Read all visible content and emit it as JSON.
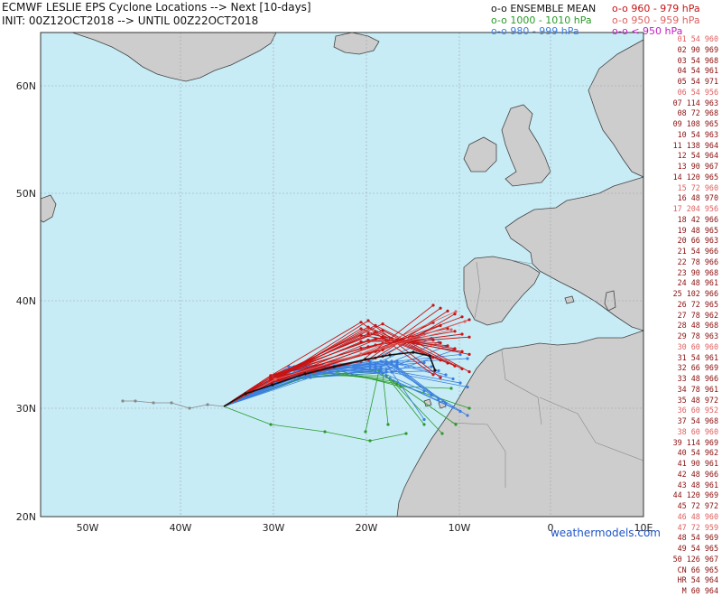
{
  "header": {
    "title_line1": "ECMWF LESLIE EPS Cyclone Locations --> Next [10-days]",
    "title_line2": "INIT: 00Z12OCT2018 --> UNTIL 00Z22OCT2018"
  },
  "legend": {
    "ensemble_mean": {
      "label": "o-o ENSEMBLE MEAN",
      "color": "#111111"
    },
    "cat_960_979": {
      "label": "o-o 960 - 979 hPa",
      "color": "#c81414"
    },
    "cat_1000_1010": {
      "label": "o-o 1000 - 1010 hPa",
      "color": "#2a9a2a"
    },
    "cat_950_959": {
      "label": "o-o 950 - 959 hPa",
      "color": "#e06060"
    },
    "cat_980_999": {
      "label": "o-o 980 - 999 hPa",
      "color": "#3a7fe0"
    },
    "cat_lt_950": {
      "label": "o-o < 950 hPa",
      "color": "#c020c0"
    }
  },
  "map": {
    "lon_ticks": [
      "50W",
      "40W",
      "30W",
      "20W",
      "10W",
      "0",
      "10E"
    ],
    "lat_ticks": [
      "60N",
      "50N",
      "40N",
      "30N",
      "20N"
    ],
    "colors": {
      "ocean": "#c7ecf6",
      "land": "#cdcdcd",
      "coast": "#444444",
      "grid": "#9aa3ad"
    }
  },
  "members": [
    {
      "text": "01 54 960",
      "color": "#e06060"
    },
    {
      "text": "02 90 969",
      "color": "#8b1010"
    },
    {
      "text": "03 54 968",
      "color": "#8b1010"
    },
    {
      "text": "04 54 961",
      "color": "#8b1010"
    },
    {
      "text": "05 54 971",
      "color": "#8b1010"
    },
    {
      "text": "06 54 956",
      "color": "#e06060"
    },
    {
      "text": "07 114 963",
      "color": "#8b1010"
    },
    {
      "text": "08 72 968",
      "color": "#8b1010"
    },
    {
      "text": "09 108 965",
      "color": "#8b1010"
    },
    {
      "text": "10 54 963",
      "color": "#8b1010"
    },
    {
      "text": "11 138 964",
      "color": "#8b1010"
    },
    {
      "text": "12 54 964",
      "color": "#8b1010"
    },
    {
      "text": "13 90 967",
      "color": "#8b1010"
    },
    {
      "text": "14 120 965",
      "color": "#8b1010"
    },
    {
      "text": "15 72 960",
      "color": "#e06060"
    },
    {
      "text": "16 48 970",
      "color": "#8b1010"
    },
    {
      "text": "17 204 956",
      "color": "#e06060"
    },
    {
      "text": "18 42 966",
      "color": "#8b1010"
    },
    {
      "text": "19 48 965",
      "color": "#8b1010"
    },
    {
      "text": "20 66 963",
      "color": "#8b1010"
    },
    {
      "text": "21 54 966",
      "color": "#8b1010"
    },
    {
      "text": "22 78 966",
      "color": "#8b1010"
    },
    {
      "text": "23 90 968",
      "color": "#8b1010"
    },
    {
      "text": "24 48 961",
      "color": "#8b1010"
    },
    {
      "text": "25 102 966",
      "color": "#8b1010"
    },
    {
      "text": "26 72 965",
      "color": "#8b1010"
    },
    {
      "text": "27 78 962",
      "color": "#8b1010"
    },
    {
      "text": "28 48 968",
      "color": "#8b1010"
    },
    {
      "text": "29 78 963",
      "color": "#8b1010"
    },
    {
      "text": "30 60 960",
      "color": "#e06060"
    },
    {
      "text": "31 54 961",
      "color": "#8b1010"
    },
    {
      "text": "32 66 969",
      "color": "#8b1010"
    },
    {
      "text": "33 48 966",
      "color": "#8b1010"
    },
    {
      "text": "34 78 961",
      "color": "#8b1010"
    },
    {
      "text": "35 48 972",
      "color": "#8b1010"
    },
    {
      "text": "36 60 952",
      "color": "#e06060"
    },
    {
      "text": "37 54 968",
      "color": "#8b1010"
    },
    {
      "text": "38 60 960",
      "color": "#e06060"
    },
    {
      "text": "39 114 969",
      "color": "#8b1010"
    },
    {
      "text": "40 54 962",
      "color": "#8b1010"
    },
    {
      "text": "41 90 961",
      "color": "#8b1010"
    },
    {
      "text": "42 48 966",
      "color": "#8b1010"
    },
    {
      "text": "43 48 961",
      "color": "#8b1010"
    },
    {
      "text": "44 120 969",
      "color": "#8b1010"
    },
    {
      "text": "45 72 972",
      "color": "#8b1010"
    },
    {
      "text": "46 48 960",
      "color": "#e06060"
    },
    {
      "text": "47 72 959",
      "color": "#e06060"
    },
    {
      "text": "48 54 969",
      "color": "#8b1010"
    },
    {
      "text": "49 54 965",
      "color": "#8b1010"
    },
    {
      "text": "50 126 967",
      "color": "#8b1010"
    },
    {
      "text": "CN 66 965",
      "color": "#8b1010"
    },
    {
      "text": "HR 54 964",
      "color": "#8b1010"
    },
    {
      "text": "M 60 964",
      "color": "#8b1010"
    }
  ],
  "credit": "weathermodels.com"
}
